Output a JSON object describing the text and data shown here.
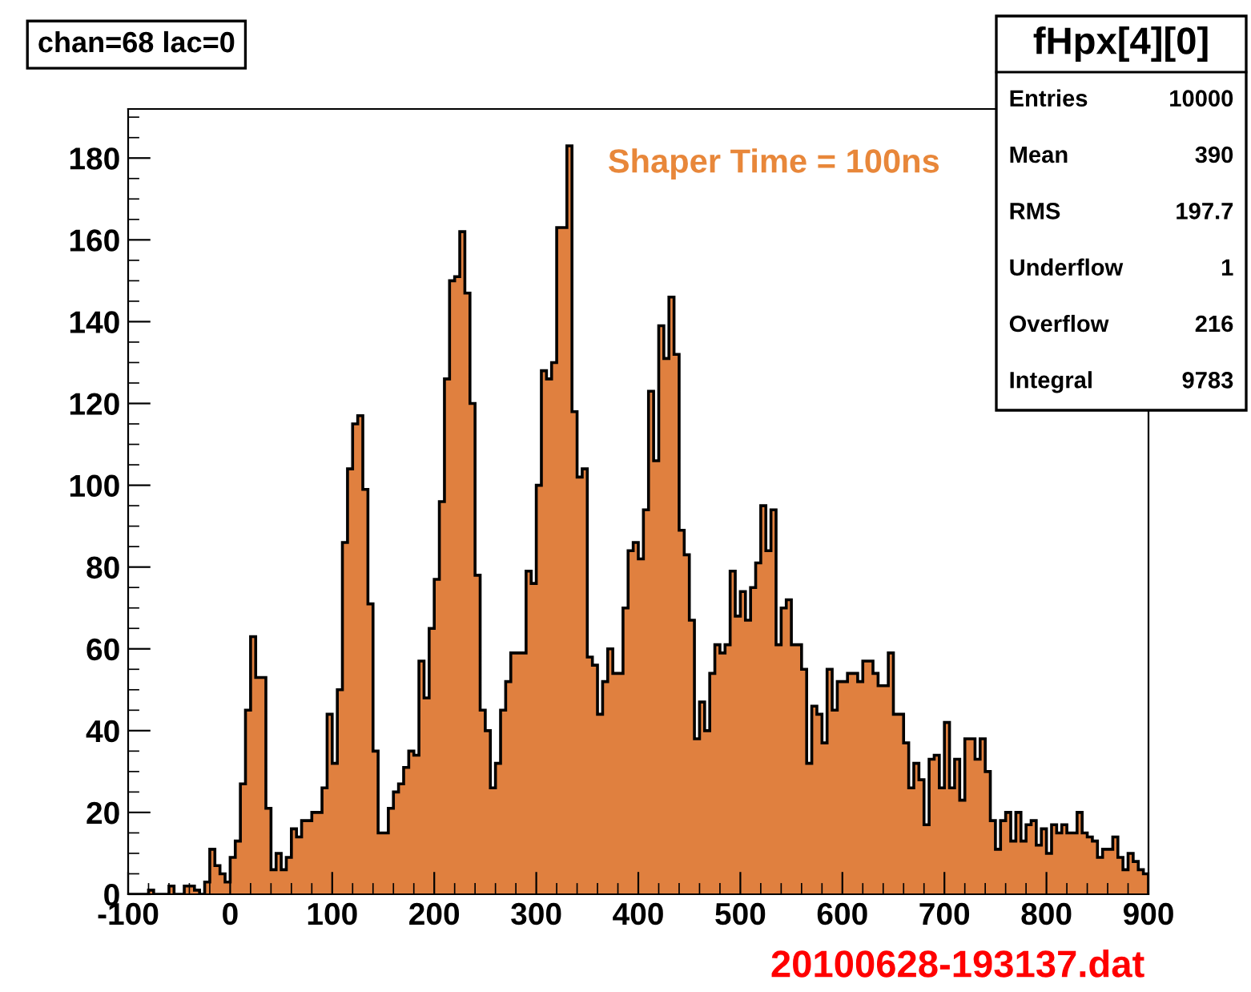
{
  "chart_data": {
    "type": "histogram",
    "title": "chan=68 lac=0",
    "subtitle": "fHpx[4][0]",
    "annotations": [
      "Shaper Time = 100ns",
      "20100628-193137.dat",
      "Entries",
      "10000",
      "Mean",
      "390",
      "RMS",
      "197.7",
      "Underflow",
      "1",
      "Overflow",
      "216",
      "Integral",
      "9783"
    ],
    "color": "#e0803f",
    "bins": [
      -100,
      -95,
      -90,
      -85,
      -80,
      -75,
      -70,
      -65,
      -60,
      -55,
      -50,
      -45,
      -40,
      -35,
      -30,
      -25,
      -20,
      -15,
      -10,
      -5,
      0,
      5,
      10,
      15,
      20,
      25,
      30,
      35,
      40,
      45,
      50,
      55,
      60,
      65,
      70,
      75,
      80,
      85,
      90,
      95,
      100,
      105,
      110,
      115,
      120,
      125,
      130,
      135,
      140,
      145,
      150,
      155,
      160,
      165,
      170,
      175,
      180,
      185,
      190,
      195,
      200,
      205,
      210,
      215,
      220,
      225,
      230,
      235,
      240,
      245,
      250,
      255,
      260,
      265,
      270,
      275,
      280,
      285,
      290,
      295,
      300,
      305,
      310,
      315,
      320,
      325,
      330,
      335,
      340,
      345,
      350,
      355,
      360,
      365,
      370,
      375,
      380,
      385,
      390,
      395,
      400,
      405,
      410,
      415,
      420,
      425,
      430,
      435,
      440,
      445,
      450,
      455,
      460,
      465,
      470,
      475,
      480,
      485,
      490,
      495,
      500,
      505,
      510,
      515,
      520,
      525,
      530,
      535,
      540,
      545,
      550,
      555,
      560,
      565,
      570,
      575,
      580,
      585,
      590,
      595,
      600,
      605,
      610,
      615,
      620,
      625,
      630,
      635,
      640,
      645,
      650,
      655,
      660,
      665,
      670,
      675,
      680,
      685,
      690,
      695,
      700,
      705,
      710,
      715,
      720,
      725,
      730,
      735,
      740,
      745,
      750,
      755,
      760,
      765,
      770,
      775,
      780,
      785,
      790,
      795,
      800,
      805,
      810,
      815,
      820,
      825,
      830,
      835,
      840,
      845,
      850,
      855,
      860,
      865,
      870,
      875,
      880,
      885,
      890,
      895,
      900
    ],
    "values": [
      0,
      0,
      0,
      0,
      1,
      0,
      0,
      0,
      2,
      0,
      0,
      2,
      2,
      1,
      0,
      3,
      11,
      7,
      5,
      3,
      9,
      13,
      27,
      45,
      63,
      53,
      53,
      21,
      6,
      10,
      6,
      9,
      16,
      14,
      18,
      18,
      20,
      20,
      26,
      44,
      32,
      50,
      86,
      104,
      115,
      117,
      99,
      71,
      35,
      15,
      15,
      21,
      25,
      27,
      31,
      35,
      34,
      57,
      48,
      65,
      77,
      96,
      126,
      150,
      151,
      162,
      147,
      120,
      78,
      45,
      40,
      26,
      32,
      45,
      52,
      59,
      59,
      59,
      79,
      76,
      100,
      128,
      126,
      130,
      163,
      163,
      183,
      118,
      102,
      104,
      58,
      56,
      44,
      52,
      60,
      54,
      54,
      70,
      84,
      86,
      82,
      94,
      123,
      106,
      139,
      131,
      146,
      132,
      89,
      83,
      67,
      38,
      47,
      40,
      54,
      61,
      59,
      61,
      79,
      68,
      74,
      67,
      75,
      81,
      95,
      84,
      94,
      61,
      70,
      72,
      61,
      61,
      55,
      32,
      46,
      44,
      37,
      55,
      45,
      52,
      52,
      54,
      54,
      52,
      57,
      57,
      54,
      51,
      51,
      59,
      44,
      44,
      37,
      26,
      32,
      28,
      17,
      33,
      34,
      26,
      42,
      26,
      33,
      23,
      38,
      38,
      33,
      38,
      30,
      18,
      11,
      18,
      20,
      13,
      20,
      13,
      17,
      18,
      12,
      16,
      10,
      17,
      15,
      17,
      15,
      15,
      20,
      15,
      14,
      13,
      9,
      11,
      11,
      14,
      9,
      6,
      10,
      8,
      6,
      5
    ],
    "xlim": [
      -100,
      900
    ],
    "xticks": [
      -100,
      0,
      100,
      200,
      300,
      400,
      500,
      600,
      700,
      800,
      900
    ],
    "ylim": [
      0,
      192
    ],
    "yticks": [
      0,
      20,
      40,
      60,
      80,
      100,
      120,
      140,
      160,
      180
    ],
    "grid": false
  }
}
